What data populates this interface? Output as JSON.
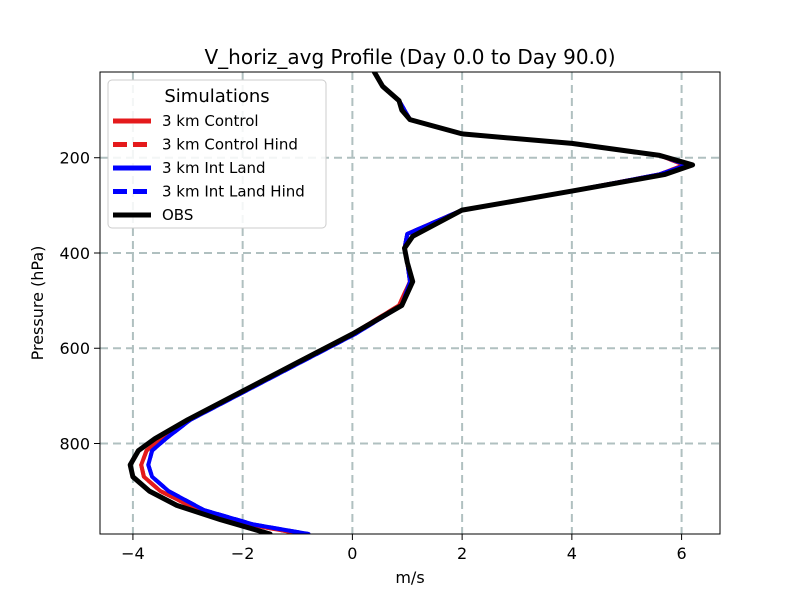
{
  "chart_data": {
    "type": "line",
    "title": "V_horiz_avg Profile (Day 0.0 to Day 90.0)",
    "xlabel": "m/s",
    "ylabel": "Pressure (hPa)",
    "xlim": [
      -4.6,
      6.7
    ],
    "ylim": [
      990,
      20
    ],
    "y_inverted": true,
    "x_ticks": [
      -4,
      -2,
      0,
      2,
      4,
      6
    ],
    "x_tick_labels": [
      "−4",
      "−2",
      "0",
      "2",
      "4",
      "6"
    ],
    "y_ticks": [
      200,
      400,
      600,
      800
    ],
    "y_tick_labels": [
      "200",
      "400",
      "600",
      "800"
    ],
    "grid": true,
    "legend": {
      "title": "Simulations",
      "placement": "top-left"
    },
    "series": [
      {
        "name": "3 km Control",
        "color": "#e41a1c",
        "style": "solid",
        "x": [
          0.4,
          0.55,
          0.85,
          0.95,
          1.05,
          2.0,
          4.0,
          5.6,
          6.05,
          5.6,
          4.0,
          2.0,
          1.0,
          0.95,
          1.0,
          1.05,
          0.85,
          0.0,
          -1.0,
          -2.0,
          -3.0,
          -3.5,
          -3.75,
          -3.85,
          -3.8,
          -3.5,
          -2.8,
          -1.9,
          -0.9
        ],
        "y": [
          20,
          50,
          80,
          100,
          120,
          150,
          170,
          195,
          215,
          235,
          270,
          310,
          360,
          390,
          420,
          460,
          510,
          570,
          630,
          690,
          750,
          790,
          815,
          845,
          870,
          900,
          940,
          970,
          990
        ]
      },
      {
        "name": "3 km Control Hind",
        "color": "#e41a1c",
        "style": "dashed",
        "x": [
          0.4,
          0.55,
          0.85,
          0.95,
          1.05,
          2.0,
          4.0,
          5.6,
          6.05,
          5.6,
          4.0,
          2.0,
          1.0,
          0.95,
          1.0,
          1.05,
          0.85,
          0.0,
          -1.0,
          -2.0,
          -3.0,
          -3.5,
          -3.75,
          -3.85,
          -3.8,
          -3.5,
          -2.8,
          -1.9,
          -0.9
        ],
        "y": [
          20,
          50,
          80,
          100,
          120,
          150,
          170,
          195,
          215,
          235,
          270,
          310,
          360,
          390,
          420,
          460,
          510,
          570,
          630,
          690,
          750,
          790,
          815,
          845,
          870,
          900,
          940,
          970,
          990
        ]
      },
      {
        "name": "3 km Int Land",
        "color": "#0000ff",
        "style": "solid",
        "x": [
          0.4,
          0.55,
          0.85,
          0.95,
          1.05,
          2.0,
          4.0,
          5.6,
          6.1,
          5.6,
          4.0,
          2.0,
          1.0,
          0.95,
          1.0,
          1.05,
          0.9,
          0.05,
          -0.95,
          -1.95,
          -2.95,
          -3.4,
          -3.65,
          -3.72,
          -3.65,
          -3.35,
          -2.7,
          -1.8,
          -0.8
        ],
        "y": [
          20,
          50,
          80,
          100,
          120,
          150,
          170,
          195,
          215,
          235,
          270,
          310,
          360,
          390,
          420,
          460,
          510,
          570,
          630,
          690,
          750,
          790,
          815,
          845,
          870,
          900,
          940,
          970,
          990
        ]
      },
      {
        "name": "3 km Int Land Hind",
        "color": "#0000ff",
        "style": "dashed",
        "x": [
          0.4,
          0.55,
          0.85,
          0.95,
          1.05,
          2.0,
          4.0,
          5.6,
          6.1,
          5.6,
          4.0,
          2.0,
          1.0,
          0.95,
          1.0,
          1.05,
          0.9,
          0.05,
          -0.95,
          -1.95,
          -2.95,
          -3.4,
          -3.65,
          -3.72,
          -3.65,
          -3.35,
          -2.7,
          -1.8,
          -0.8
        ],
        "y": [
          20,
          50,
          80,
          100,
          120,
          150,
          170,
          195,
          215,
          235,
          270,
          310,
          360,
          390,
          420,
          460,
          510,
          570,
          630,
          690,
          750,
          790,
          815,
          845,
          870,
          900,
          940,
          970,
          990
        ]
      },
      {
        "name": "OBS",
        "color": "#000000",
        "style": "solid",
        "x": [
          0.4,
          0.55,
          0.85,
          0.9,
          1.05,
          2.0,
          4.0,
          5.6,
          6.2,
          5.7,
          4.0,
          2.0,
          1.1,
          0.95,
          1.0,
          1.1,
          0.9,
          0.0,
          -1.0,
          -2.0,
          -3.0,
          -3.6,
          -3.9,
          -4.05,
          -4.0,
          -3.7,
          -3.2,
          -2.4,
          -1.5
        ],
        "y": [
          20,
          50,
          80,
          100,
          120,
          150,
          170,
          195,
          215,
          235,
          270,
          310,
          365,
          390,
          420,
          460,
          510,
          570,
          630,
          690,
          750,
          790,
          815,
          845,
          870,
          900,
          930,
          960,
          990
        ]
      }
    ]
  }
}
